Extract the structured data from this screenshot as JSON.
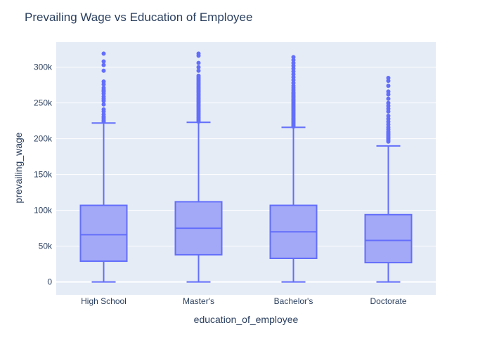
{
  "colors": {
    "plot_bg": "#E5ECF6",
    "grid": "#ffffff",
    "box_line": "#636EFA",
    "box_fill": "#A3A9F7",
    "text": "#2a3f5f"
  },
  "chart_data": {
    "type": "box",
    "title": "Prevailing Wage vs Education of Employee",
    "xlabel": "education_of_employee",
    "ylabel": "prevailing_wage",
    "categories": [
      "High School",
      "Master's",
      "Bachelor's",
      "Doctorate"
    ],
    "ylim": [
      -18000,
      335000
    ],
    "yticks": [
      {
        "value": 0,
        "label": "0"
      },
      {
        "value": 50000,
        "label": "50k"
      },
      {
        "value": 100000,
        "label": "100k"
      },
      {
        "value": 150000,
        "label": "150k"
      },
      {
        "value": 200000,
        "label": "200k"
      },
      {
        "value": 250000,
        "label": "250k"
      },
      {
        "value": 300000,
        "label": "300k"
      }
    ],
    "grid": true,
    "legend": "none",
    "boxes": [
      {
        "category": "High School",
        "min": 0,
        "q1": 29000,
        "median": 66000,
        "q3": 107000,
        "upper_fence": 222000,
        "outliers": [
          224000,
          226000,
          229000,
          231000,
          234000,
          238000,
          241000,
          248000,
          253000,
          256000,
          259000,
          263000,
          266000,
          268000,
          271000,
          276000,
          280000,
          295000,
          303000,
          308000,
          319000
        ]
      },
      {
        "category": "Master's",
        "min": 0,
        "q1": 38000,
        "median": 75000,
        "q3": 112000,
        "upper_fence": 223000,
        "outliers": [
          224000,
          226000,
          228000,
          230000,
          232000,
          234000,
          236000,
          238000,
          240000,
          242000,
          244000,
          246000,
          248000,
          250000,
          252000,
          254000,
          256000,
          258000,
          260000,
          262000,
          264000,
          266000,
          268000,
          270000,
          272000,
          274000,
          276000,
          278000,
          280000,
          282000,
          284000,
          286000,
          288000,
          295000,
          300000,
          306000,
          316000,
          319000
        ]
      },
      {
        "category": "Bachelor's",
        "min": 0,
        "q1": 33000,
        "median": 70000,
        "q3": 107000,
        "upper_fence": 216000,
        "outliers": [
          217000,
          219000,
          221000,
          223000,
          225000,
          227000,
          229000,
          231000,
          233000,
          235000,
          237000,
          239000,
          241000,
          243000,
          245000,
          247000,
          249000,
          251000,
          253000,
          255000,
          257000,
          259000,
          261000,
          263000,
          265000,
          268000,
          271000,
          274000,
          278000,
          282000,
          286000,
          290000,
          294000,
          298000,
          302000,
          306000,
          310000,
          314000
        ]
      },
      {
        "category": "Doctorate",
        "min": 0,
        "q1": 27000,
        "median": 58000,
        "q3": 94000,
        "upper_fence": 190000,
        "outliers": [
          196000,
          198000,
          200000,
          202000,
          204000,
          206000,
          208000,
          210000,
          213000,
          216000,
          220000,
          224000,
          228000,
          232000,
          238000,
          242000,
          246000,
          250000,
          256000,
          262000,
          266000,
          274000,
          281000,
          285000
        ]
      }
    ]
  }
}
